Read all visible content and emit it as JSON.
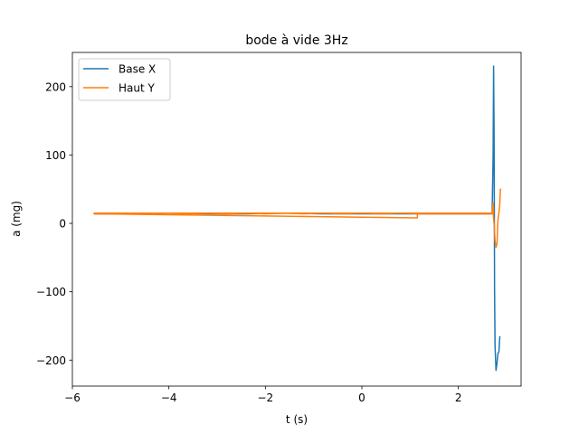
{
  "chart_data": {
    "type": "line",
    "title": "bode à vide 3Hz",
    "xlabel": "t (s)",
    "ylabel": "a (mg)",
    "xlim": [
      -6,
      3.3
    ],
    "ylim": [
      -238,
      250
    ],
    "xticks": [
      -6,
      -4,
      -2,
      0,
      2
    ],
    "xtick_labels": [
      "−6",
      "−4",
      "−2",
      "0",
      "2"
    ],
    "yticks": [
      -200,
      -100,
      0,
      100,
      200
    ],
    "ytick_labels": [
      "−200",
      "−100",
      "0",
      "100",
      "200"
    ],
    "grid": false,
    "legend": {
      "position": "top-left"
    },
    "series": [
      {
        "name": "Base X",
        "color": "#1f77b4",
        "x": [
          -5.55,
          -4.8,
          -4.0,
          -3.2,
          -2.4,
          -1.6,
          -0.8,
          0.0,
          0.8,
          1.6,
          2.0,
          2.4,
          2.6,
          2.68,
          2.7,
          2.72,
          2.73,
          2.74,
          2.745,
          2.75,
          2.76,
          2.78,
          2.8,
          2.82,
          2.84,
          2.85,
          2.86
        ],
        "y": [
          14,
          14,
          15,
          14,
          14,
          15,
          14,
          14,
          14,
          14,
          14,
          14,
          14,
          14,
          15,
          100,
          230,
          135,
          30,
          -95,
          -180,
          -215,
          -205,
          -190,
          -188,
          -175,
          -165
        ]
      },
      {
        "name": "Haut Y",
        "color": "#ff7f0e",
        "x": [
          -5.55,
          -5.2,
          -4.8,
          -4.4,
          -4.0,
          -3.6,
          -3.2,
          -2.8,
          -2.4,
          -2.0,
          -1.6,
          -1.2,
          -0.8,
          -0.4,
          0.0,
          0.4,
          0.8,
          1.2,
          1.6,
          2.0,
          2.4,
          2.6,
          2.7,
          2.72,
          2.73,
          1.15,
          1.15,
          -5.55,
          -5.55,
          2.72,
          2.74,
          2.76,
          2.78,
          2.8,
          2.82,
          2.84,
          2.86,
          2.87,
          2.88
        ],
        "y": [
          15,
          14,
          15,
          14,
          15,
          14,
          15,
          14,
          15,
          14,
          15,
          14,
          15,
          14,
          15,
          14,
          15,
          14,
          15,
          14,
          14,
          15,
          14,
          30,
          14,
          14,
          8,
          14,
          15,
          15,
          0,
          -25,
          -35,
          -30,
          5,
          15,
          30,
          50,
          48
        ]
      }
    ]
  }
}
